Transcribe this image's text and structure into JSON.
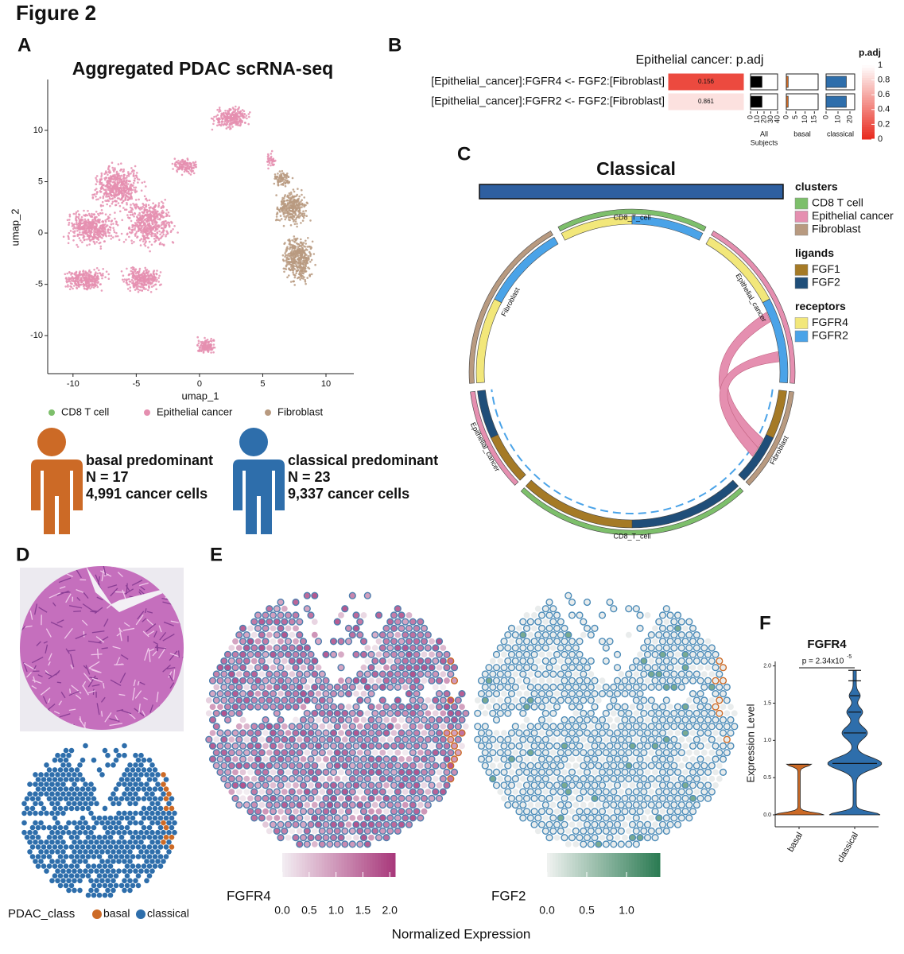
{
  "figure_title": "Figure 2",
  "A": {
    "label": "A",
    "title": "Aggregated PDAC scRNA-seq",
    "x_label": "umap_1",
    "y_label": "umap_2",
    "xlim": [
      -12,
      12.2
    ],
    "ylim": [
      -13.7,
      14.8
    ],
    "xticks": [
      -10,
      -5,
      0,
      5,
      10
    ],
    "yticks": [
      -10,
      -5,
      0,
      5,
      10
    ],
    "clusters": [
      {
        "name": "CD8 T cell",
        "color": "#7dbf6b"
      },
      {
        "name": "Epithelial cancer",
        "color": "#e58fb0"
      },
      {
        "name": "Fibroblast",
        "color": "#b89a80"
      }
    ],
    "groups": [
      {
        "name": "basal predominant",
        "n": "N = 17",
        "cells": "4,991 cancer cells",
        "color": "#cc6a26"
      },
      {
        "name": "classical predominant",
        "n": "N = 23",
        "cells": "9,337 cancer cells",
        "color": "#2e6eab"
      }
    ]
  },
  "B": {
    "label": "B",
    "title": "Epithelial cancer: p.adj",
    "rows": [
      "[Epithelial_cancer]:FGFR4 <- FGF2:[Fibroblast]",
      "[Epithelial_cancer]:FGFR2 <- FGF2:[Fibroblast]"
    ],
    "p_adj": [
      0.156,
      0.861
    ],
    "colorbar_title": "p.adj",
    "colorscale": [
      "#e8281c",
      "#ffffff"
    ],
    "colorbar_lim": [
      0,
      1
    ],
    "colorbar_ticks": [
      0,
      0.2,
      0.4,
      0.6,
      0.8,
      1
    ],
    "subjects": [
      {
        "label_lines": [
          "All",
          "Subjects"
        ],
        "color": "#000000",
        "xlim": [
          0,
          40
        ],
        "xticks": [
          0,
          10,
          20,
          30,
          40
        ],
        "values": [
          17,
          17
        ]
      },
      {
        "label_lines": [
          "basal"
        ],
        "color": "#cc6a26",
        "xlim": [
          0,
          17
        ],
        "xticks": [
          0,
          5,
          10,
          15
        ],
        "values": [
          1,
          1
        ]
      },
      {
        "label_lines": [
          "classical"
        ],
        "color": "#2e6eab",
        "xlim": [
          0,
          24
        ],
        "xticks": [
          0,
          10,
          20
        ],
        "values": [
          17,
          17
        ]
      }
    ]
  },
  "C": {
    "label": "C",
    "title": "Classical",
    "title_bar_color": "#2e5fa0",
    "sectors": [
      "CD8_T_cell",
      "Epithelial_cancer",
      "Fibroblast"
    ],
    "legend": [
      {
        "title": "clusters",
        "items": [
          {
            "name": "CD8  T cell",
            "color": "#7dbf6b"
          },
          {
            "name": "Epithelial cancer",
            "color": "#e58fb0"
          },
          {
            "name": "Fibroblast",
            "color": "#b89a80"
          }
        ]
      },
      {
        "title": "ligands",
        "items": [
          {
            "name": "FGF1",
            "color": "#a57a26"
          },
          {
            "name": "FGF2",
            "color": "#1f4e79"
          }
        ]
      },
      {
        "title": "receptors",
        "items": [
          {
            "name": "FGFR4",
            "color": "#f2e77a"
          },
          {
            "name": "FGFR2",
            "color": "#4aa3e8"
          }
        ]
      }
    ]
  },
  "D": {
    "label": "D",
    "legend_title": "PDAC_class",
    "classes": [
      {
        "name": "basal",
        "color": "#cc6a26"
      },
      {
        "name": "classical",
        "color": "#2e6eab"
      }
    ]
  },
  "E": {
    "label": "E",
    "axis_label": "Normalized Expression",
    "colorbars": [
      {
        "name": "FGFR4",
        "colors": [
          "#f3eef2",
          "#a8387a"
        ],
        "lim": [
          0,
          2.1
        ],
        "ticks": [
          {
            "value": 0,
            "label": "0.0"
          },
          {
            "value": 0.5,
            "label": "0.5"
          },
          {
            "value": 1,
            "label": "1.0"
          },
          {
            "value": 1.5,
            "label": "1.5"
          },
          {
            "value": 2,
            "label": "2.0"
          }
        ]
      },
      {
        "name": "FGF2",
        "colors": [
          "#f0f2f1",
          "#2b7a52"
        ],
        "lim": [
          0,
          1.42
        ],
        "ticks": [
          {
            "value": 0,
            "label": "0.0"
          },
          {
            "value": 0.5,
            "label": "0.5"
          },
          {
            "value": 1,
            "label": "1.0"
          }
        ]
      }
    ]
  },
  "F": {
    "label": "F",
    "title": "FGFR4",
    "y_label": "Expression Level",
    "categories": [
      "basal",
      "classical"
    ],
    "colors": [
      "#cc6a26",
      "#2e6eab"
    ],
    "ylim": [
      -0.16,
      2.06
    ],
    "yticks": [
      {
        "value": 0,
        "label": "0.0"
      },
      {
        "value": 0.5,
        "label": "0.5"
      },
      {
        "value": 1,
        "label": "1.0"
      },
      {
        "value": 1.5,
        "label": "1.5"
      },
      {
        "value": 2,
        "label": "2.0"
      }
    ],
    "p_value": "p = 2.34x10",
    "p_exponent": "-5"
  }
}
